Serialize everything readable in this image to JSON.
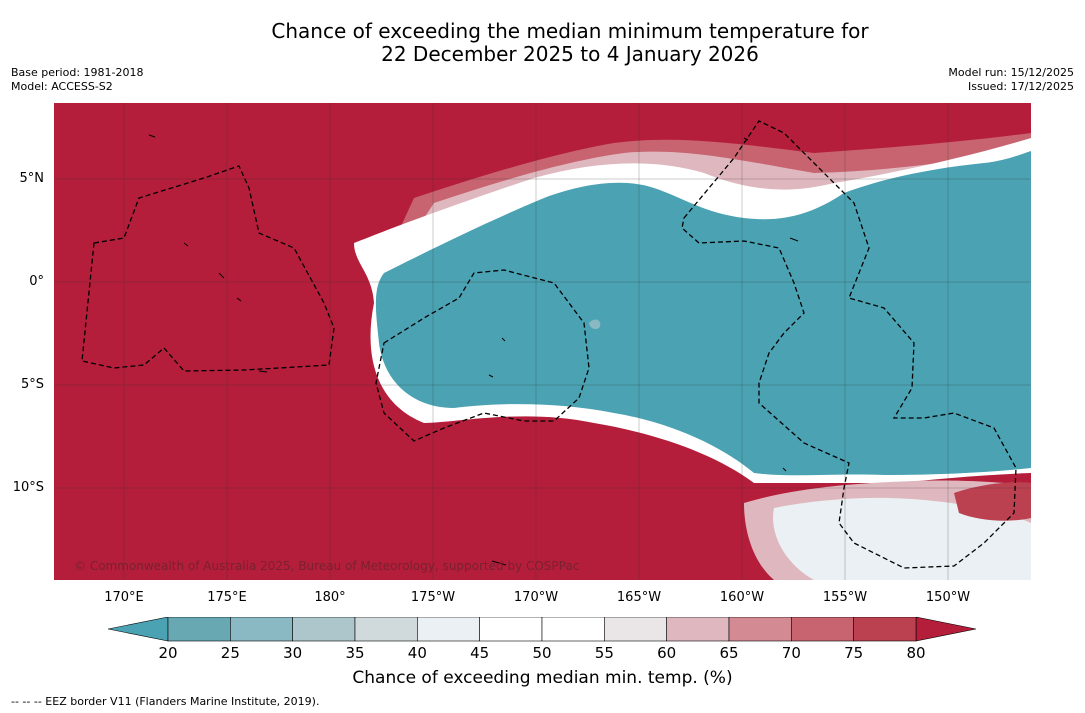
{
  "title": {
    "line1": "Chance of exceeding the median minimum temperature for",
    "line2": "22 December 2025 to 4 January 2026"
  },
  "meta": {
    "base_period": "Base period: 1981-2018",
    "model": "Model: ACCESS-S2",
    "model_run": "Model run: 15/12/2025",
    "issued": "Issued: 17/12/2025"
  },
  "map": {
    "latitude_labels": [
      "5°N",
      "0°",
      "5°S",
      "10°S"
    ],
    "longitude_labels": [
      "170°E",
      "175°E",
      "180°",
      "175°W",
      "170°W",
      "165°W",
      "160°W",
      "155°W",
      "150°W"
    ],
    "copyright": "© Commonwealth of Australia 2025, Bureau of Meteorology, supported by COSPPac",
    "colors": {
      "above": "#b41e3a",
      "below": "#4aa2b3",
      "neutral": "#ffffff"
    }
  },
  "colorbar": {
    "ticks": [
      "20",
      "25",
      "30",
      "35",
      "40",
      "45",
      "50",
      "55",
      "60",
      "65",
      "70",
      "75",
      "80"
    ],
    "colors": [
      "#68a8b3",
      "#8ab8c3",
      "#adc6cb",
      "#d0d9db",
      "#eaf0f3",
      "#ffffff",
      "#ffffff",
      "#eae6e8",
      "#dfb8bf",
      "#d48a93",
      "#c76470",
      "#bb4151"
    ],
    "low_extend_color": "#4aa2b3",
    "high_extend_color": "#b41e3a",
    "label": "Chance of exceeding median min. temp. (%)"
  },
  "footnote": "--  --  -- EEZ border V11 (Flanders Marine Institute, 2019)."
}
